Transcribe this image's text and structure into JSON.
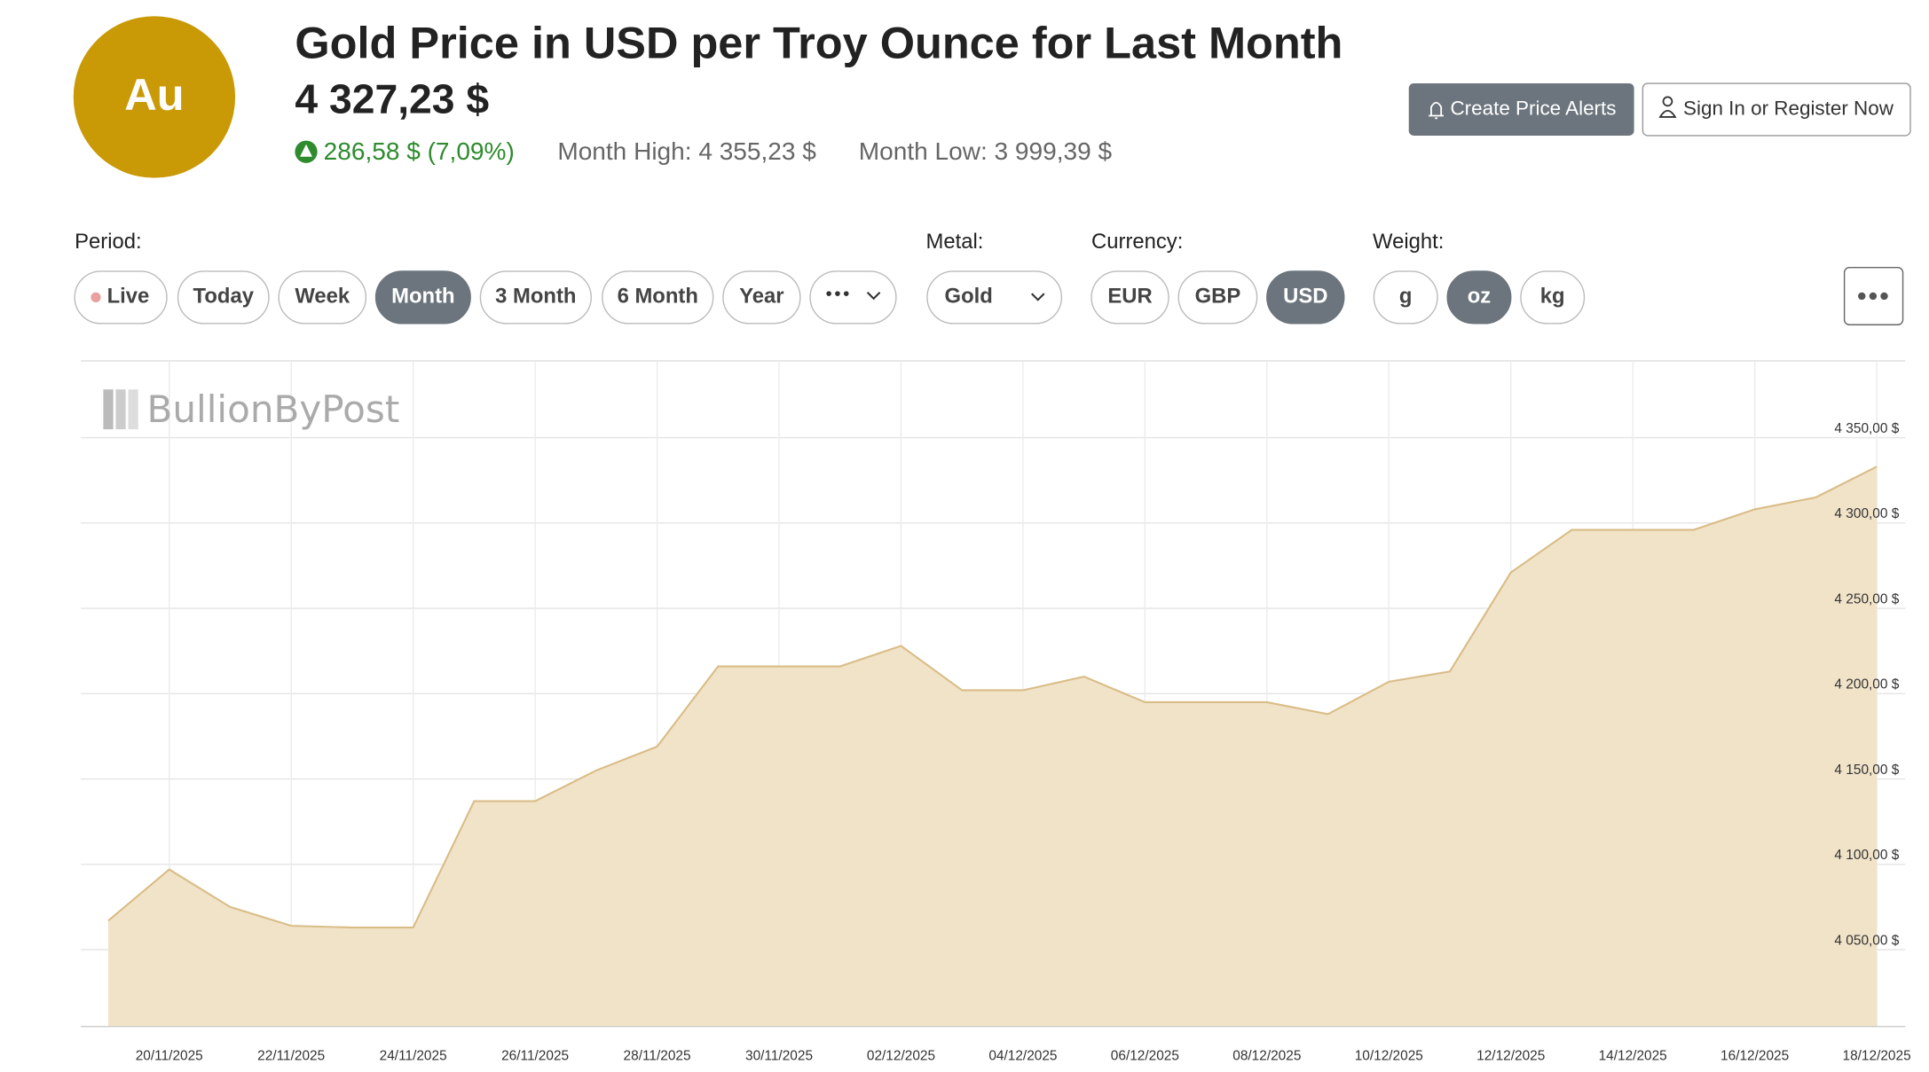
{
  "logo": "Au",
  "header": {
    "title": "Gold Price in USD per Troy Ounce for Last Month",
    "price": "4 327,23 $",
    "change": "286,58 $ (7,09%)",
    "month_high": "Month High: 4 355,23 $",
    "month_low": "Month Low: 3 999,39 $"
  },
  "actions": [
    "Create Price Alerts",
    "Sign In or Register Now"
  ],
  "filters": {
    "period": {
      "label": "Period:",
      "options": [
        "Live",
        "Today",
        "Week",
        "Month",
        "3 Month",
        "6 Month",
        "Year"
      ],
      "selected": "Month"
    },
    "metal": {
      "label": "Metal:",
      "value": "Gold"
    },
    "currency": {
      "label": "Currency:",
      "options": [
        "EUR",
        "GBP",
        "USD"
      ],
      "selected": "USD"
    },
    "weight": {
      "label": "Weight:",
      "options": [
        "g",
        "oz",
        "kg"
      ],
      "selected": "oz"
    }
  },
  "watermark": "BullionByPost",
  "chart_data": {
    "type": "area",
    "color": "#d9bd87",
    "fill": "#f1e3c8",
    "x": [
      "19/11/2025",
      "20/11/2025",
      "21/11/2025",
      "22/11/2025",
      "23/11/2025",
      "24/11/2025",
      "25/11/2025",
      "26/11/2025",
      "27/11/2025",
      "28/11/2025",
      "29/11/2025",
      "30/11/2025",
      "01/12/2025",
      "02/12/2025",
      "03/12/2025",
      "04/12/2025",
      "05/12/2025",
      "06/12/2025",
      "07/12/2025",
      "08/12/2025",
      "09/12/2025",
      "10/12/2025",
      "11/12/2025",
      "12/12/2025",
      "13/12/2025",
      "14/12/2025",
      "15/12/2025",
      "16/12/2025",
      "17/12/2025",
      "18/12/2025"
    ],
    "values": [
      4067,
      4097,
      4075,
      4064,
      4063,
      4063,
      4137,
      4137,
      4155,
      4169,
      4216,
      4216,
      4216,
      4228,
      4202,
      4202,
      4210,
      4195,
      4195,
      4195,
      4188,
      4207,
      4213,
      4271,
      4296,
      4296,
      4296,
      4308,
      4315,
      4333
    ],
    "xticks": [
      "20/11/2025",
      "22/11/2025",
      "24/11/2025",
      "26/11/2025",
      "28/11/2025",
      "30/11/2025",
      "02/12/2025",
      "04/12/2025",
      "06/12/2025",
      "08/12/2025",
      "10/12/2025",
      "12/12/2025",
      "14/12/2025",
      "16/12/2025",
      "18/12/2025"
    ],
    "ylim": [
      4005,
      4395
    ],
    "yticks": [
      {
        "value": 4050,
        "label": "4 050,00 $"
      },
      {
        "value": 4100,
        "label": "4 100,00 $"
      },
      {
        "value": 4150,
        "label": "4 150,00 $"
      },
      {
        "value": 4200,
        "label": "4 200,00 $"
      },
      {
        "value": 4250,
        "label": "4 250,00 $"
      },
      {
        "value": 4300,
        "label": "4 300,00 $"
      },
      {
        "value": 4350,
        "label": "4 350,00 $"
      }
    ],
    "grid": true
  }
}
